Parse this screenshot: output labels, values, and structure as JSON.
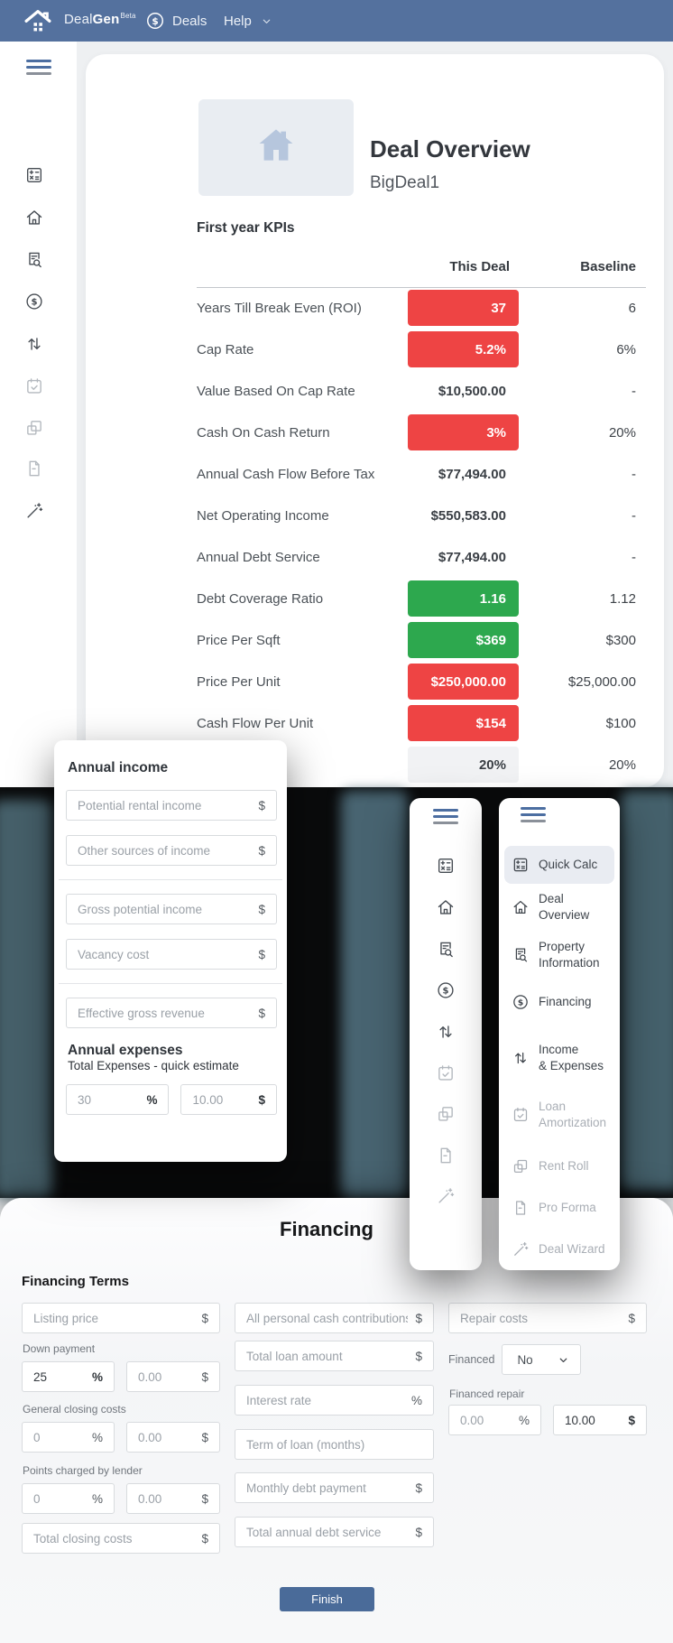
{
  "colors": {
    "navbar_blue": "#54719e",
    "badge_red": "#ee4444",
    "badge_green": "#2da84e",
    "badge_gray_bg": "#f1f2f4",
    "finish_blue": "#4a6b99",
    "hamburger_blue": "#4c6ea1"
  },
  "navbar": {
    "brand": {
      "light": "Deal",
      "bold": "Gen",
      "sup": "Beta"
    },
    "deals_label": "Deals",
    "help_label": "Help"
  },
  "sidebar": {
    "icons": [
      {
        "name": "calculator",
        "state": "normal"
      },
      {
        "name": "home",
        "state": "normal"
      },
      {
        "name": "document-search",
        "state": "normal"
      },
      {
        "name": "dollar-circle",
        "state": "normal"
      },
      {
        "name": "arrows-up-down",
        "state": "normal"
      },
      {
        "name": "calendar-check",
        "state": "disabled"
      },
      {
        "name": "overlapping-squares",
        "state": "disabled"
      },
      {
        "name": "document",
        "state": "disabled"
      },
      {
        "name": "magic-wand",
        "state": "normal"
      }
    ]
  },
  "deal_overview": {
    "title": "Deal Overview",
    "deal_name": "BigDeal1",
    "kpi": {
      "heading": "First year KPIs",
      "columns": [
        "This Deal",
        "Baseline"
      ],
      "rows": [
        {
          "label": "Years Till Break Even (ROI)",
          "value": "37",
          "baseline": "6",
          "status": "bad"
        },
        {
          "label": "Cap Rate",
          "value": "5.2%",
          "baseline": "6%",
          "status": "bad"
        },
        {
          "label": "Value Based On Cap Rate",
          "value": "$10,500.00",
          "baseline": "-",
          "status": "plain"
        },
        {
          "label": "Cash On Cash Return",
          "value": "3%",
          "baseline": "20%",
          "status": "bad"
        },
        {
          "label": "Annual Cash Flow Before Tax",
          "value": "$77,494.00",
          "baseline": "-",
          "status": "plain"
        },
        {
          "label": "Net Operating Income",
          "value": "$550,583.00",
          "baseline": "-",
          "status": "plain"
        },
        {
          "label": "Annual Debt Service",
          "value": "$77,494.00",
          "baseline": "-",
          "status": "plain"
        },
        {
          "label": "Debt Coverage Ratio",
          "value": "1.16",
          "baseline": "1.12",
          "status": "good"
        },
        {
          "label": "Price Per Sqft",
          "value": "$369",
          "baseline": "$300",
          "status": "good"
        },
        {
          "label": "Price Per Unit",
          "value": "$250,000.00",
          "baseline": "$25,000.00",
          "status": "bad"
        },
        {
          "label": "Cash Flow Per Unit",
          "value": "$154",
          "baseline": "$100",
          "status": "bad"
        },
        {
          "label": "",
          "value": "20%",
          "baseline": "20%",
          "status": "neutral"
        }
      ]
    }
  },
  "income_card": {
    "title": "Annual income",
    "fields": [
      {
        "placeholder": "Potential rental income",
        "suffix": "$",
        "divider_after": false
      },
      {
        "placeholder": "Other sources of income",
        "suffix": "$",
        "divider_after": true
      },
      {
        "placeholder": "Gross potential income",
        "suffix": "$",
        "divider_after": false
      },
      {
        "placeholder": "Vacancy cost",
        "suffix": "$",
        "divider_after": true
      },
      {
        "placeholder": "Effective gross revenue",
        "suffix": "$",
        "divider_after": false
      }
    ],
    "expenses_title": "Annual expenses",
    "expenses_label": "Total Expenses - quick estimate",
    "expense_pct": {
      "value": "30",
      "suffix": "%"
    },
    "expense_amt": {
      "value": "10.00",
      "suffix": "$"
    }
  },
  "floating_menu": {
    "items": [
      {
        "lines": [
          "Quick Calc"
        ],
        "icon": "calculator",
        "state": "active"
      },
      {
        "lines": [
          "Deal Overview"
        ],
        "icon": "home",
        "state": "normal"
      },
      {
        "lines": [
          "Property",
          "Information"
        ],
        "icon": "document-search",
        "state": "normal"
      },
      {
        "lines": [
          "Financing"
        ],
        "icon": "dollar-circle",
        "state": "normal"
      },
      {
        "lines": [
          "Income",
          "& Expenses"
        ],
        "icon": "arrows-up-down",
        "state": "normal"
      },
      {
        "lines": [
          "Loan",
          "Amortization"
        ],
        "icon": "calendar-check",
        "state": "disabled"
      },
      {
        "lines": [
          "Rent Roll"
        ],
        "icon": "overlapping-squares",
        "state": "disabled"
      },
      {
        "lines": [
          "Pro Forma"
        ],
        "icon": "document",
        "state": "disabled"
      },
      {
        "lines": [
          "Deal Wizard"
        ],
        "icon": "magic-wand",
        "state": "disabled"
      }
    ]
  },
  "financing": {
    "title": "Financing",
    "section_title": "Financing Terms",
    "listing_price": {
      "placeholder": "Listing price",
      "suffix": "$"
    },
    "down_payment": {
      "label": "Down payment",
      "pct_value": "25",
      "pct_suffix": "%",
      "amt_placeholder": "0.00",
      "amt_suffix": "$"
    },
    "general_closing": {
      "label": "General closing costs",
      "pct_placeholder": "0",
      "pct_suffix": "%",
      "amt_placeholder": "0.00",
      "amt_suffix": "$"
    },
    "points": {
      "label": "Points charged by lender",
      "pct_placeholder": "0",
      "pct_suffix": "%",
      "amt_placeholder": "0.00",
      "amt_suffix": "$"
    },
    "total_closing": {
      "placeholder": "Total closing costs",
      "suffix": "$"
    },
    "middle": [
      {
        "placeholder": "All personal cash contributions",
        "suffix": "$"
      },
      {
        "placeholder": "Total loan amount",
        "suffix": "$"
      },
      {
        "placeholder": "Interest rate",
        "suffix": "%"
      },
      {
        "placeholder": "Term of loan (months)",
        "suffix": ""
      },
      {
        "placeholder": "Monthly debt payment",
        "suffix": "$"
      },
      {
        "placeholder": "Total annual debt service",
        "suffix": "$"
      }
    ],
    "repair_costs": {
      "placeholder": "Repair costs",
      "suffix": "$"
    },
    "financed": {
      "label": "Financed",
      "value": "No"
    },
    "financed_repair": {
      "label": "Financed repair",
      "pct_value": "0.00",
      "pct_suffix": "%",
      "amt_value": "10.00",
      "amt_suffix": "$"
    },
    "finish_label": "Finish"
  }
}
